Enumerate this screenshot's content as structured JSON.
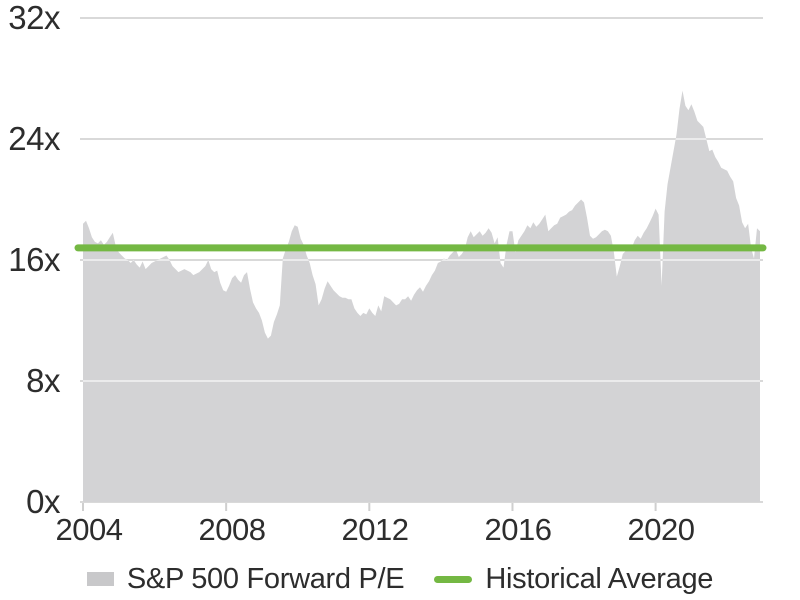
{
  "chart_data": {
    "type": "area",
    "title": "",
    "unit_suffix": "x",
    "grid": true,
    "legend_position": "bottom",
    "ylim": [
      0,
      32
    ],
    "x_range": [
      "2004-01",
      "2022-12"
    ],
    "series": {
      "name": "S&P 500 Forward P/E",
      "frequency": "monthly",
      "start": "2004-01",
      "end": "2022-12",
      "values": [
        18.4,
        18.6,
        18.1,
        17.5,
        17.2,
        17.1,
        17.3,
        17.0,
        17.2,
        17.5,
        17.8,
        16.9,
        16.5,
        16.3,
        16.1,
        16.0,
        15.8,
        16.0,
        15.7,
        15.5,
        15.9,
        15.4,
        15.6,
        15.8,
        15.9,
        16.0,
        16.1,
        16.2,
        16.3,
        16.0,
        15.6,
        15.4,
        15.2,
        15.3,
        15.4,
        15.3,
        15.2,
        15.0,
        15.1,
        15.2,
        15.4,
        15.6,
        16.0,
        15.4,
        15.2,
        15.3,
        14.5,
        14.0,
        13.9,
        14.3,
        14.8,
        15.0,
        14.7,
        14.5,
        15.0,
        15.2,
        14.1,
        13.2,
        12.8,
        12.5,
        12.0,
        11.2,
        10.8,
        11.0,
        11.9,
        12.4,
        13.0,
        16.1,
        16.7,
        17.2,
        17.9,
        18.3,
        18.2,
        17.4,
        17.0,
        16.3,
        15.8,
        15.0,
        14.4,
        13.0,
        13.4,
        14.1,
        14.6,
        14.3,
        14.0,
        13.8,
        13.6,
        13.5,
        13.5,
        13.4,
        13.4,
        12.8,
        12.5,
        12.3,
        12.5,
        12.4,
        12.8,
        12.5,
        12.3,
        13.0,
        12.6,
        13.6,
        13.5,
        13.4,
        13.2,
        13.0,
        13.1,
        13.4,
        13.4,
        13.6,
        13.3,
        13.7,
        14.0,
        14.2,
        13.9,
        14.3,
        14.6,
        15.0,
        15.3,
        15.8,
        15.9,
        16.1,
        16.0,
        16.3,
        16.5,
        16.7,
        16.2,
        16.4,
        16.7,
        17.5,
        17.9,
        17.5,
        17.7,
        17.9,
        17.6,
        17.8,
        18.1,
        17.8,
        17.1,
        17.5,
        15.8,
        15.5,
        17.0,
        17.9,
        17.9,
        16.5,
        17.3,
        17.6,
        17.9,
        18.3,
        18.1,
        18.5,
        18.2,
        18.4,
        18.7,
        19.0,
        17.9,
        18.1,
        18.3,
        18.4,
        18.8,
        18.9,
        19.0,
        19.2,
        19.3,
        19.6,
        19.8,
        20.0,
        19.8,
        18.8,
        17.6,
        17.4,
        17.5,
        17.7,
        17.9,
        18.0,
        17.9,
        17.6,
        16.5,
        14.9,
        15.6,
        16.4,
        16.6,
        17.0,
        16.8,
        17.3,
        17.6,
        17.4,
        17.8,
        18.1,
        18.5,
        18.9,
        19.4,
        19.0,
        14.3,
        19.2,
        21.0,
        22.1,
        23.2,
        24.3,
        26.0,
        27.2,
        26.2,
        25.9,
        26.3,
        25.8,
        25.2,
        25.0,
        24.8,
        24.0,
        23.2,
        23.3,
        22.8,
        22.5,
        22.1,
        22.0,
        21.9,
        21.5,
        21.2,
        20.1,
        19.6,
        18.5,
        18.1,
        18.4,
        16.8,
        16.1,
        18.1,
        17.9
      ]
    },
    "average_line": {
      "name": "Historical Average",
      "value": 16.8
    },
    "y_axis": {
      "ticks": [
        {
          "label": "32x",
          "value": 32
        },
        {
          "label": "24x",
          "value": 24
        },
        {
          "label": "16x",
          "value": 16
        },
        {
          "label": "8x",
          "value": 8
        },
        {
          "label": "0x",
          "value": 0
        }
      ]
    },
    "x_axis": {
      "ticks": [
        {
          "label": "2004",
          "year": 2004
        },
        {
          "label": "2008",
          "year": 2008
        },
        {
          "label": "2012",
          "year": 2012
        },
        {
          "label": "2016",
          "year": 2016
        },
        {
          "label": "2020",
          "year": 2020
        }
      ]
    },
    "legend": [
      {
        "label": "S&P 500 Forward P/E",
        "type": "area"
      },
      {
        "label": "Historical Average",
        "type": "line"
      }
    ]
  },
  "colors": {
    "area_fill": "#d3d3d5",
    "legend_area_swatch": "#c8c8ca",
    "average_line": "#74b843",
    "gridline": "#d9d9d9",
    "gridline_over_area": "rgba(255,255,255,0.55)",
    "tick": "#cfcfcf",
    "text": "#2d2d2d",
    "background": "#ffffff"
  }
}
